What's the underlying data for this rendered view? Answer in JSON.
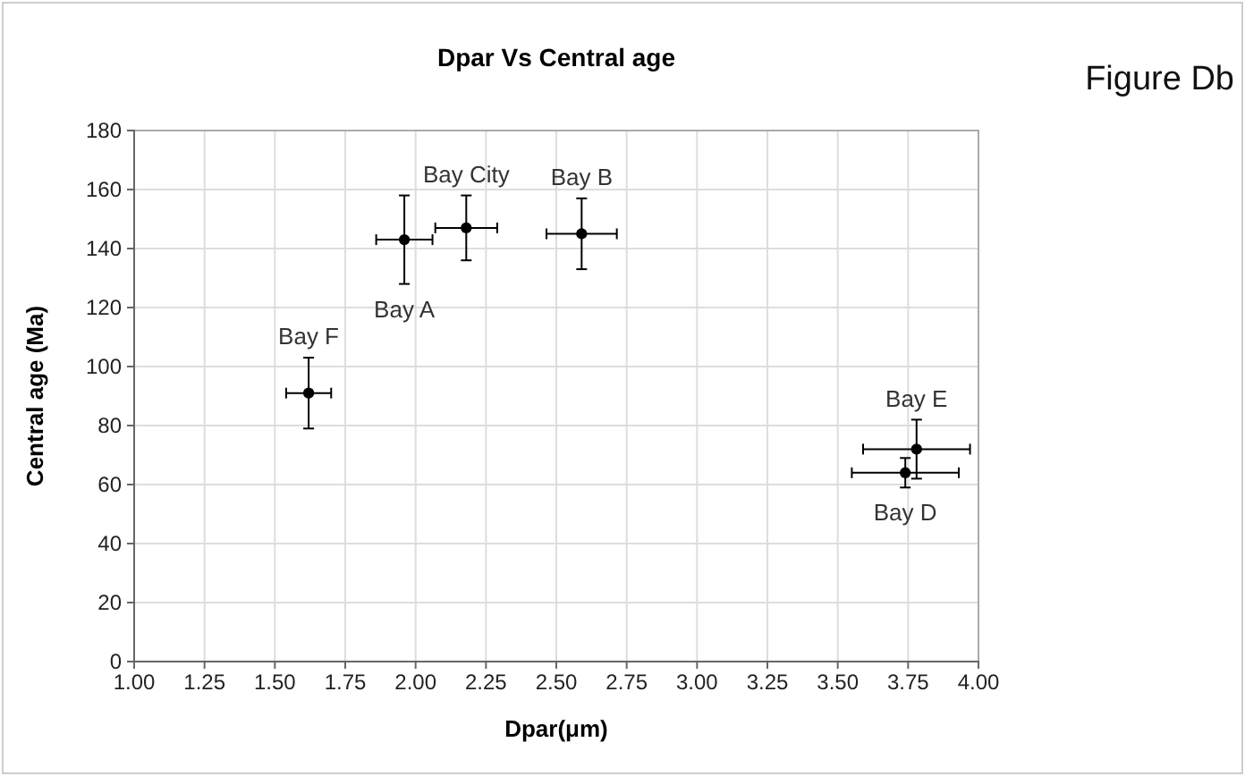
{
  "chart_data": {
    "type": "scatter",
    "title": "Dpar Vs Central age",
    "xlabel": "Dpar(μm)",
    "ylabel": "Central age (Ma)",
    "x": [
      1.62,
      1.96,
      2.18,
      2.59,
      3.78,
      3.74
    ],
    "series": [
      {
        "color": "#000000",
        "values": [
          91,
          143,
          147,
          145,
          72,
          64
        ],
        "errors": [
          12,
          15,
          11,
          12,
          10,
          5
        ],
        "xerrors": [
          0.08,
          0.1,
          0.11,
          0.125,
          0.19,
          0.19
        ]
      }
    ],
    "xlim": [
      1,
      4
    ],
    "xticks": [
      {
        "value": 1,
        "label": "1.00"
      },
      {
        "value": 1.25,
        "label": "1.25"
      },
      {
        "value": 1.5,
        "label": "1.50"
      },
      {
        "value": 1.75,
        "label": "1.75"
      },
      {
        "value": 2,
        "label": "2.00"
      },
      {
        "value": 2.25,
        "label": "2.25"
      },
      {
        "value": 2.5,
        "label": "2.50"
      },
      {
        "value": 2.75,
        "label": "2.75"
      },
      {
        "value": 3,
        "label": "3.00"
      },
      {
        "value": 3.25,
        "label": "3.25"
      },
      {
        "value": 3.5,
        "label": "3.50"
      },
      {
        "value": 3.75,
        "label": "3.75"
      },
      {
        "value": 4,
        "label": "4.00"
      }
    ],
    "ylim": [
      0,
      180
    ],
    "yticks": [
      0,
      20,
      40,
      60,
      80,
      100,
      120,
      140,
      160,
      180
    ],
    "grid": true,
    "marker": "circle",
    "annotations": [
      {
        "text": "Bay F",
        "x": 1.62,
        "y": 91
      },
      {
        "text": "Bay A",
        "x": 1.96,
        "y": 143
      },
      {
        "text": "Bay City",
        "x": 2.18,
        "y": 147
      },
      {
        "text": "Bay B",
        "x": 2.59,
        "y": 145
      },
      {
        "text": "Bay E",
        "x": 3.78,
        "y": 72
      },
      {
        "text": "Bay D",
        "x": 3.74,
        "y": 64
      },
      "Figure Db"
    ]
  }
}
